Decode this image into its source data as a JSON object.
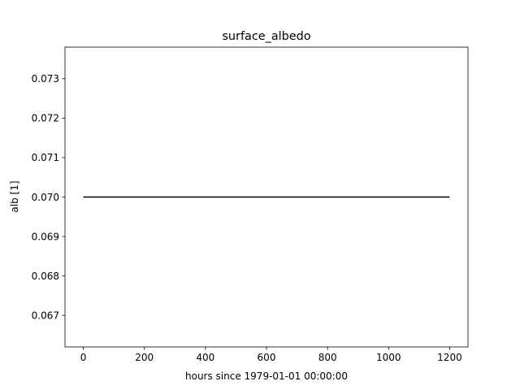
{
  "chart_data": {
    "type": "line",
    "title": "surface_albedo",
    "xlabel": "hours since 1979-01-01 00:00:00",
    "ylabel": "alb [1]",
    "xlim": [
      -60,
      1260
    ],
    "ylim": [
      0.0662,
      0.0738
    ],
    "xticks": [
      0,
      200,
      400,
      600,
      800,
      1000,
      1200
    ],
    "yticks": [
      0.067,
      0.068,
      0.069,
      0.07,
      0.071,
      0.072,
      0.073
    ],
    "ytick_labels": [
      "0.067",
      "0.068",
      "0.069",
      "0.070",
      "0.071",
      "0.072",
      "0.073"
    ],
    "grid": false,
    "series": [
      {
        "x": [
          0,
          1200
        ],
        "y": [
          0.07,
          0.07
        ],
        "color": "#000000"
      }
    ]
  }
}
